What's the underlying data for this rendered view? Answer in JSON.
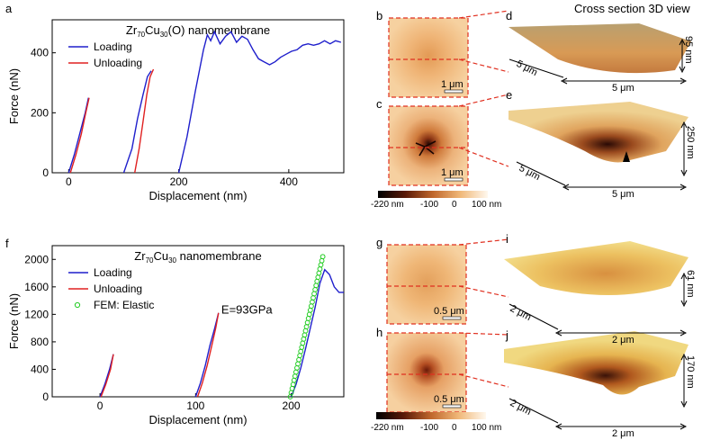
{
  "panels": {
    "a": "a",
    "b": "b",
    "c": "c",
    "d": "d",
    "e": "e",
    "f": "f",
    "g": "g",
    "h": "h",
    "i": "i",
    "j": "j"
  },
  "cross_section_title": "Cross section 3D view",
  "chart_data": [
    {
      "type": "line",
      "title_main": "Zr",
      "title_sub1": "70",
      "title_mid": "Cu",
      "title_sub2": "30",
      "title_suffix": "(O) nanomembrane",
      "xlabel": "Displacement (nm)",
      "ylabel": "Force (nN)",
      "xlim": [
        -30,
        500
      ],
      "ylim": [
        0,
        510
      ],
      "xticks": [
        0,
        200,
        400
      ],
      "yticks": [
        0,
        200,
        400
      ],
      "legend": "top-left",
      "series": [
        {
          "name": "Loading",
          "color": "#1f1fcc",
          "segments": [
            [
              [
                0,
                0
              ],
              [
                10,
                60
              ],
              [
                20,
                130
              ],
              [
                30,
                200
              ],
              [
                36,
                250
              ]
            ],
            [
              [
                100,
                0
              ],
              [
                115,
                80
              ],
              [
                125,
                180
              ],
              [
                135,
                260
              ],
              [
                143,
                320
              ],
              [
                150,
                340
              ]
            ],
            [
              [
                200,
                0
              ],
              [
                215,
                120
              ],
              [
                230,
                270
              ],
              [
                245,
                410
              ],
              [
                252,
                460
              ],
              [
                258,
                440
              ],
              [
                265,
                470
              ],
              [
                275,
                430
              ],
              [
                285,
                455
              ],
              [
                295,
                470
              ],
              [
                305,
                435
              ],
              [
                315,
                455
              ],
              [
                325,
                445
              ],
              [
                335,
                410
              ],
              [
                345,
                380
              ],
              [
                355,
                370
              ],
              [
                365,
                360
              ],
              [
                375,
                370
              ],
              [
                385,
                385
              ],
              [
                395,
                395
              ],
              [
                405,
                405
              ],
              [
                415,
                410
              ],
              [
                425,
                425
              ],
              [
                435,
                430
              ],
              [
                445,
                425
              ],
              [
                455,
                430
              ],
              [
                465,
                440
              ],
              [
                475,
                430
              ],
              [
                485,
                440
              ],
              [
                495,
                435
              ]
            ]
          ]
        },
        {
          "name": "Unloading",
          "color": "#e02020",
          "segments": [
            [
              [
                3,
                0
              ],
              [
                13,
                60
              ],
              [
                23,
                130
              ],
              [
                31,
                200
              ],
              [
                37,
                250
              ]
            ],
            [
              [
                120,
                0
              ],
              [
                128,
                80
              ],
              [
                135,
                170
              ],
              [
                142,
                260
              ],
              [
                148,
                320
              ],
              [
                154,
                345
              ]
            ]
          ]
        }
      ]
    },
    {
      "type": "line",
      "title_main": "Zr",
      "title_sub1": "70",
      "title_mid": "Cu",
      "title_sub2": "30",
      "title_suffix": " nanomembrane",
      "xlabel": "Displacement (nm)",
      "ylabel": "Force (nN)",
      "xlim": [
        -50,
        255
      ],
      "ylim": [
        0,
        2200
      ],
      "xticks": [
        0,
        100,
        200
      ],
      "yticks": [
        0,
        400,
        800,
        1200,
        1600,
        2000
      ],
      "legend": "top-left",
      "annotation": "E=93GPa",
      "series": [
        {
          "name": "Loading",
          "color": "#1f1fcc",
          "segments": [
            [
              [
                0,
                0
              ],
              [
                5,
                180
              ],
              [
                10,
                400
              ],
              [
                14,
                620
              ]
            ],
            [
              [
                100,
                0
              ],
              [
                105,
                200
              ],
              [
                110,
                450
              ],
              [
                115,
                750
              ],
              [
                120,
                1000
              ],
              [
                124,
                1220
              ]
            ],
            [
              [
                200,
                0
              ],
              [
                205,
                180
              ],
              [
                210,
                420
              ],
              [
                215,
                700
              ],
              [
                220,
                1000
              ],
              [
                225,
                1300
              ],
              [
                230,
                1650
              ],
              [
                235,
                1850
              ],
              [
                240,
                1780
              ],
              [
                245,
                1600
              ],
              [
                250,
                1520
              ],
              [
                255,
                1520
              ]
            ]
          ]
        },
        {
          "name": "Unloading",
          "color": "#e02020",
          "segments": [
            [
              [
                1,
                0
              ],
              [
                6,
                180
              ],
              [
                11,
                400
              ],
              [
                14,
                620
              ]
            ],
            [
              [
                102,
                0
              ],
              [
                107,
                200
              ],
              [
                112,
                450
              ],
              [
                117,
                750
              ],
              [
                121,
                1000
              ],
              [
                124,
                1220
              ]
            ]
          ]
        },
        {
          "name": "FEM: Elastic",
          "color": "#22cc22",
          "marker": "circle",
          "points": [
            [
              199,
              0
            ],
            [
              200,
              60
            ],
            [
              201,
              120
            ],
            [
              202,
              180
            ],
            [
              203,
              240
            ],
            [
              204,
              300
            ],
            [
              205,
              360
            ],
            [
              206,
              420
            ],
            [
              207,
              480
            ],
            [
              208,
              540
            ],
            [
              209,
              600
            ],
            [
              210,
              660
            ],
            [
              211,
              720
            ],
            [
              212,
              780
            ],
            [
              213,
              840
            ],
            [
              214,
              900
            ],
            [
              215,
              960
            ],
            [
              216,
              1020
            ],
            [
              217,
              1080
            ],
            [
              218,
              1140
            ],
            [
              219,
              1200
            ],
            [
              220,
              1260
            ],
            [
              221,
              1320
            ],
            [
              222,
              1380
            ],
            [
              223,
              1440
            ],
            [
              224,
              1500
            ],
            [
              225,
              1560
            ],
            [
              226,
              1620
            ],
            [
              227,
              1680
            ],
            [
              228,
              1740
            ],
            [
              229,
              1800
            ],
            [
              230,
              1860
            ],
            [
              231,
              1920
            ],
            [
              232,
              1980
            ],
            [
              233,
              2040
            ]
          ]
        }
      ]
    }
  ],
  "afm": {
    "b_scale": "1 μm",
    "c_scale": "1 μm",
    "g_scale": "0.5 μm",
    "h_scale": "0.5 μm",
    "colorbar_top": [
      "-220 nm",
      "-100",
      "0",
      "100 nm"
    ],
    "colorbar_bottom": [
      "-220 nm",
      "-100",
      "0",
      "100 nm"
    ]
  },
  "views3d": {
    "d": {
      "height": "95 nm",
      "len1": "5 μm",
      "len2": "5 μm"
    },
    "e": {
      "height": "250 nm",
      "len1": "5 μm",
      "len2": "5 μm"
    },
    "i": {
      "height": "61 nm",
      "len1": "2 μm",
      "len2": "2 μm"
    },
    "j": {
      "height": "170 nm",
      "len1": "2 μm",
      "len2": "2 μm"
    }
  }
}
